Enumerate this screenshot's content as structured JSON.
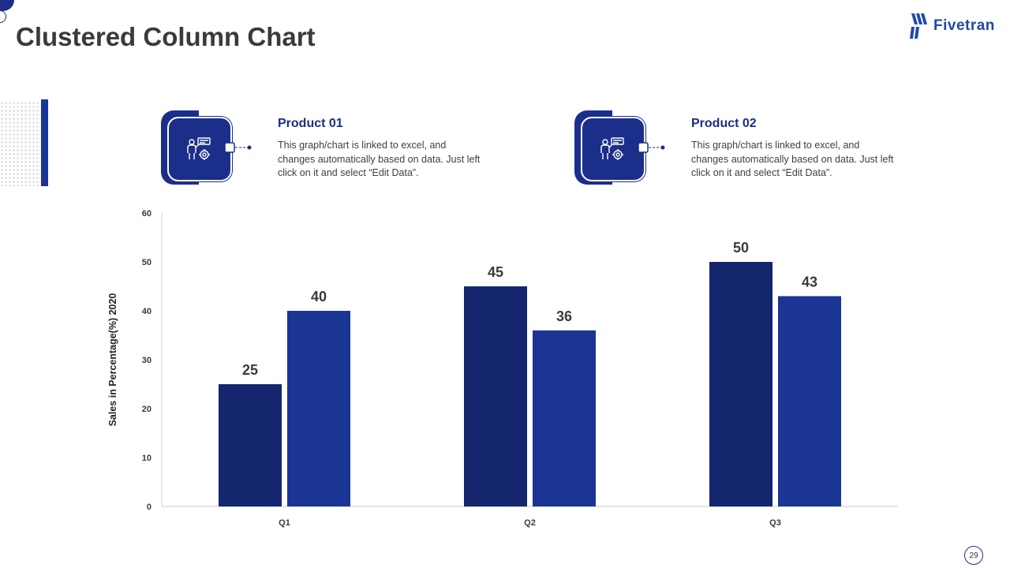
{
  "title": "Clustered Column Chart",
  "logo": {
    "text": "Fivetran"
  },
  "products": [
    {
      "title": "Product 01",
      "description": "This graph/chart is linked to excel, and changes automatically based on data. Just left click on it and select “Edit Data”.",
      "icon": "worker-gear-icon"
    },
    {
      "title": "Product 02",
      "description": "This graph/chart is linked to excel, and changes automatically based on data. Just left click on it and select “Edit Data”.",
      "icon": "worker-gear-icon"
    }
  ],
  "page_number": "29",
  "colors": {
    "series1": "#13266e",
    "series2": "#1b3595",
    "accent": "#1b3595",
    "title": "#3a3a3a"
  },
  "chart_data": {
    "type": "bar",
    "categories": [
      "Q1",
      "Q2",
      "Q3"
    ],
    "series": [
      {
        "name": "Product 01",
        "values": [
          25,
          45,
          50
        ]
      },
      {
        "name": "Product 02",
        "values": [
          40,
          36,
          43
        ]
      }
    ],
    "title": "",
    "xlabel": "",
    "ylabel": "Sales in Percentage(%) 2020",
    "ylim": [
      0,
      60
    ],
    "yticks": [
      0,
      10,
      20,
      30,
      40,
      50,
      60
    ],
    "grid": false,
    "legend": "none"
  }
}
